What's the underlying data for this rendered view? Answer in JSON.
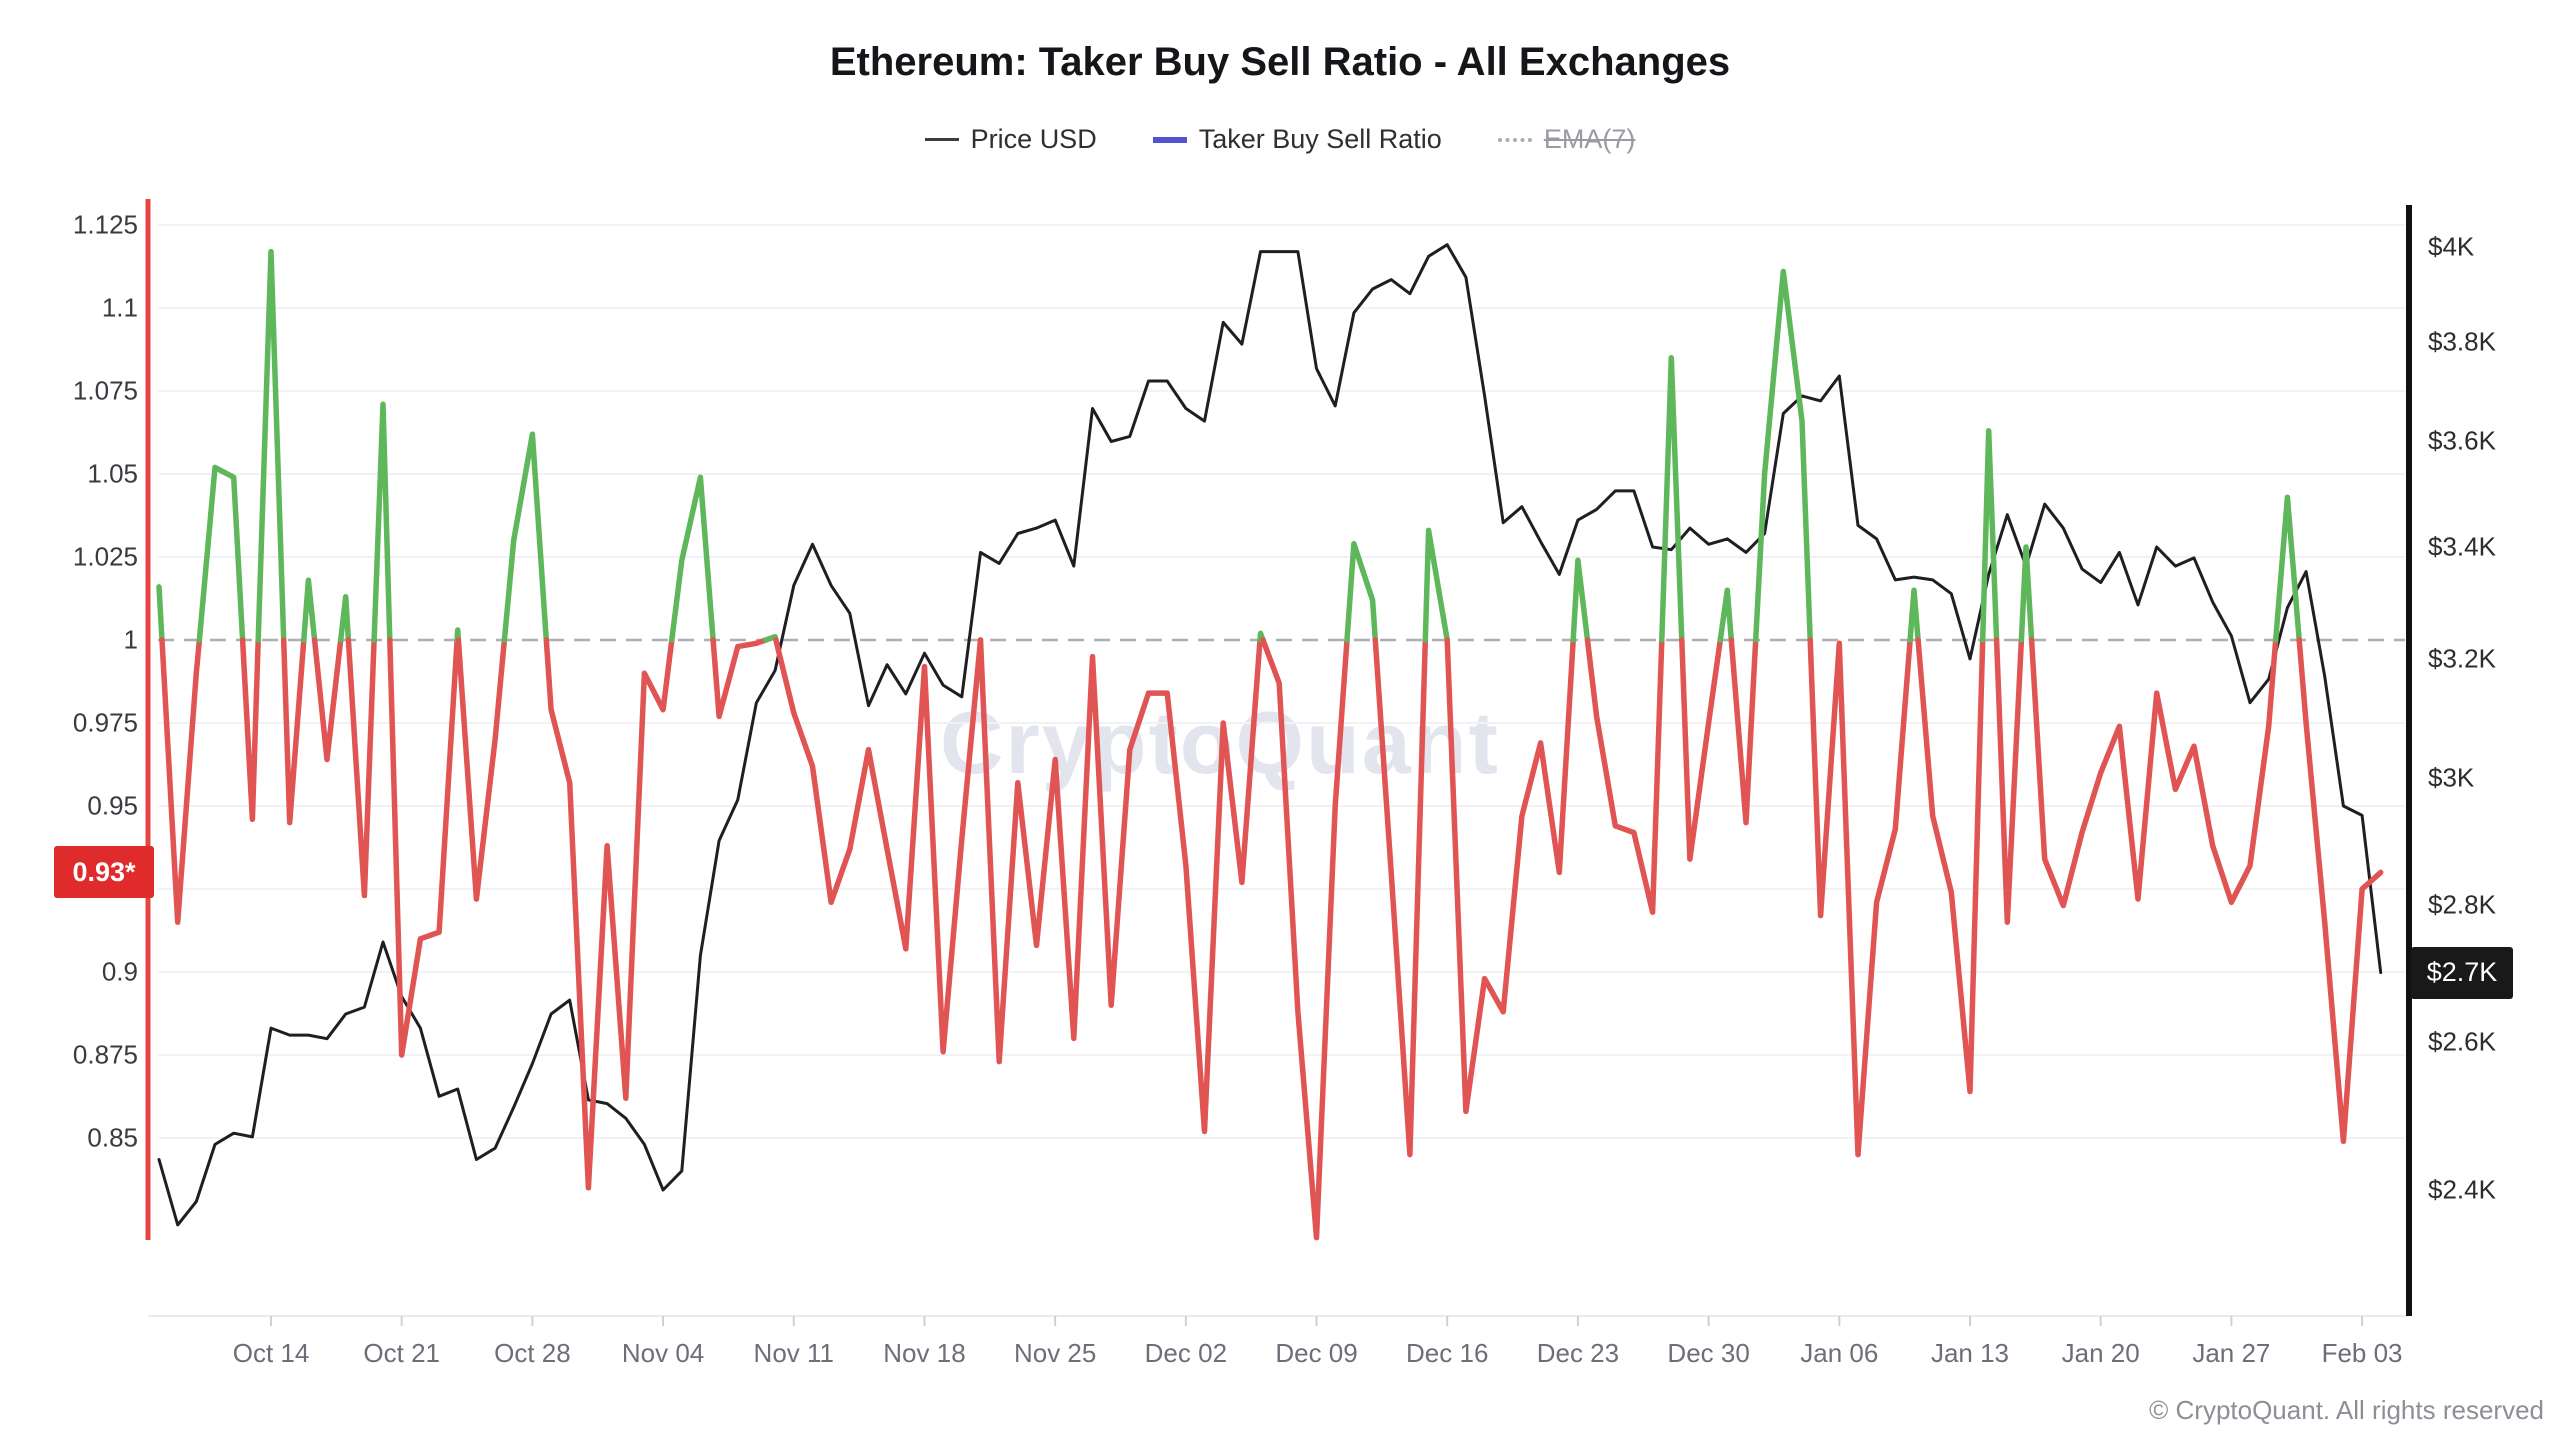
{
  "header": {
    "title": "Ethereum: Taker Buy Sell Ratio - All Exchanges",
    "legend": [
      {
        "label": "Price USD",
        "marker_color": "#3b3b40",
        "style": "solid",
        "enabled": true
      },
      {
        "label": "Taker Buy Sell Ratio",
        "marker_color": "#5254cf",
        "style": "solid",
        "enabled": true
      },
      {
        "label": "EMA(7)",
        "marker_color": "#a9a9b2",
        "style": "dotted",
        "enabled": false
      }
    ]
  },
  "watermark": "CryptoQuant",
  "copyright": "© CryptoQuant. All rights reserved",
  "badges": {
    "ratio_current": {
      "text": "0.93*",
      "value": 0.93,
      "color": "#df2b2b"
    },
    "price_current": {
      "text": "$2.7K",
      "value": 2700,
      "color": "#191919"
    }
  },
  "chart_data": {
    "type": "line",
    "title": "Ethereum: Taker Buy Sell Ratio - All Exchanges",
    "x_tick_labels": [
      "Oct 14",
      "Oct 21",
      "Oct 28",
      "Nov 04",
      "Nov 11",
      "Nov 18",
      "Nov 25",
      "Dec 02",
      "Dec 09",
      "Dec 16",
      "Dec 23",
      "Dec 30",
      "Jan 06",
      "Jan 13",
      "Jan 20",
      "Jan 27",
      "Feb 03"
    ],
    "y_left_axis": {
      "label": "Taker Buy Sell Ratio",
      "ticks": [
        1.125,
        1.1,
        1.075,
        1.05,
        1.025,
        1,
        0.975,
        0.95,
        0.925,
        0.9,
        0.875,
        0.85
      ],
      "baseline": 1.0,
      "grid": true
    },
    "y_right_axis": {
      "label": "Price USD",
      "scale": "log",
      "ticks_text": [
        "$4K",
        "$3.8K",
        "$3.6K",
        "$3.4K",
        "$3.2K",
        "$3K",
        "$2.8K",
        "$2.6K",
        "$2.4K"
      ],
      "ticks_value": [
        4000,
        3800,
        3600,
        3400,
        3200,
        3000,
        2800,
        2600,
        2400
      ]
    },
    "x": [
      "Oct 08",
      "Oct 09",
      "Oct 10",
      "Oct 11",
      "Oct 12",
      "Oct 13",
      "Oct 14",
      "Oct 15",
      "Oct 16",
      "Oct 17",
      "Oct 18",
      "Oct 19",
      "Oct 20",
      "Oct 21",
      "Oct 22",
      "Oct 23",
      "Oct 24",
      "Oct 25",
      "Oct 26",
      "Oct 27",
      "Oct 28",
      "Oct 29",
      "Oct 30",
      "Oct 31",
      "Nov 01",
      "Nov 02",
      "Nov 03",
      "Nov 04",
      "Nov 05",
      "Nov 06",
      "Nov 07",
      "Nov 08",
      "Nov 09",
      "Nov 10",
      "Nov 11",
      "Nov 12",
      "Nov 13",
      "Nov 14",
      "Nov 15",
      "Nov 16",
      "Nov 17",
      "Nov 18",
      "Nov 19",
      "Nov 20",
      "Nov 21",
      "Nov 22",
      "Nov 23",
      "Nov 24",
      "Nov 25",
      "Nov 26",
      "Nov 27",
      "Nov 28",
      "Nov 29",
      "Nov 30",
      "Dec 01",
      "Dec 02",
      "Dec 03",
      "Dec 04",
      "Dec 05",
      "Dec 06",
      "Dec 07",
      "Dec 08",
      "Dec 09",
      "Dec 10",
      "Dec 11",
      "Dec 12",
      "Dec 13",
      "Dec 14",
      "Dec 15",
      "Dec 16",
      "Dec 17",
      "Dec 18",
      "Dec 19",
      "Dec 20",
      "Dec 21",
      "Dec 22",
      "Dec 23",
      "Dec 24",
      "Dec 25",
      "Dec 26",
      "Dec 27",
      "Dec 28",
      "Dec 29",
      "Dec 30",
      "Dec 31",
      "Jan 01",
      "Jan 02",
      "Jan 03",
      "Jan 04",
      "Jan 05",
      "Jan 06",
      "Jan 07",
      "Jan 08",
      "Jan 09",
      "Jan 10",
      "Jan 11",
      "Jan 12",
      "Jan 13",
      "Jan 14",
      "Jan 15",
      "Jan 16",
      "Jan 17",
      "Jan 18",
      "Jan 19",
      "Jan 20",
      "Jan 21",
      "Jan 22",
      "Jan 23",
      "Jan 24",
      "Jan 25",
      "Jan 26",
      "Jan 27",
      "Jan 28",
      "Jan 29",
      "Jan 30",
      "Jan 31",
      "Feb 01",
      "Feb 02",
      "Feb 03",
      "Feb 04"
    ],
    "series": [
      {
        "name": "Taker Buy Sell Ratio",
        "axis": "left",
        "color_above_1": "#5eb75a",
        "color_below_1": "#e05454",
        "values": [
          1.016,
          0.915,
          0.99,
          1.052,
          1.049,
          0.946,
          1.117,
          0.945,
          1.018,
          0.964,
          1.013,
          0.923,
          1.071,
          0.875,
          0.91,
          0.912,
          1.003,
          0.922,
          0.97,
          1.03,
          1.062,
          0.979,
          0.957,
          0.835,
          0.938,
          0.862,
          0.99,
          0.979,
          1.024,
          1.049,
          0.977,
          0.998,
          0.999,
          1.001,
          0.978,
          0.962,
          0.921,
          0.937,
          0.967,
          0.937,
          0.907,
          0.992,
          0.876,
          0.94,
          1.0,
          0.873,
          0.957,
          0.908,
          0.964,
          0.88,
          0.995,
          0.89,
          0.967,
          0.984,
          0.984,
          0.932,
          0.852,
          0.975,
          0.927,
          1.002,
          0.987,
          0.888,
          0.82,
          0.95,
          1.029,
          1.012,
          0.93,
          0.845,
          1.033,
          1.0,
          0.858,
          0.898,
          0.888,
          0.947,
          0.969,
          0.93,
          1.024,
          0.977,
          0.944,
          0.942,
          0.918,
          1.085,
          0.934,
          0.975,
          1.015,
          0.945,
          1.05,
          1.111,
          1.066,
          0.917,
          0.999,
          0.845,
          0.921,
          0.943,
          1.015,
          0.947,
          0.924,
          0.864,
          1.063,
          0.915,
          1.028,
          0.934,
          0.92,
          0.942,
          0.96,
          0.974,
          0.922,
          0.984,
          0.955,
          0.968,
          0.938,
          0.921,
          0.932,
          0.974,
          1.043,
          0.975,
          0.915,
          0.849,
          0.925,
          0.93
        ],
        "last_value": 0.93
      },
      {
        "name": "Price USD",
        "axis": "right",
        "color": "#1f1f23",
        "values": [
          2440,
          2355,
          2385,
          2460,
          2475,
          2470,
          2620,
          2610,
          2610,
          2605,
          2640,
          2650,
          2745,
          2665,
          2620,
          2525,
          2535,
          2440,
          2455,
          2510,
          2570,
          2640,
          2660,
          2520,
          2515,
          2495,
          2460,
          2400,
          2425,
          2725,
          2900,
          2965,
          3125,
          3180,
          3330,
          3405,
          3330,
          3280,
          3120,
          3190,
          3140,
          3210,
          3155,
          3135,
          3390,
          3370,
          3425,
          3435,
          3450,
          3365,
          3665,
          3600,
          3610,
          3720,
          3720,
          3665,
          3640,
          3840,
          3795,
          3990,
          3990,
          3990,
          3745,
          3670,
          3860,
          3910,
          3930,
          3900,
          3980,
          4005,
          3935,
          3690,
          3445,
          3475,
          3410,
          3350,
          3450,
          3470,
          3505,
          3505,
          3400,
          3395,
          3435,
          3405,
          3415,
          3390,
          3425,
          3655,
          3690,
          3680,
          3730,
          3440,
          3415,
          3340,
          3345,
          3340,
          3315,
          3200,
          3350,
          3460,
          3365,
          3480,
          3435,
          3360,
          3335,
          3390,
          3295,
          3400,
          3365,
          3380,
          3300,
          3240,
          3125,
          3165,
          3290,
          3355,
          3170,
          2955,
          2940,
          2700
        ],
        "last_value": 2700
      }
    ],
    "baseline_1_style": {
      "color": "#aeaeb6",
      "dash": true
    },
    "grid_color": "#f2f2f6",
    "left_spine_color": "#e94444",
    "right_spine_color": "#111111"
  }
}
